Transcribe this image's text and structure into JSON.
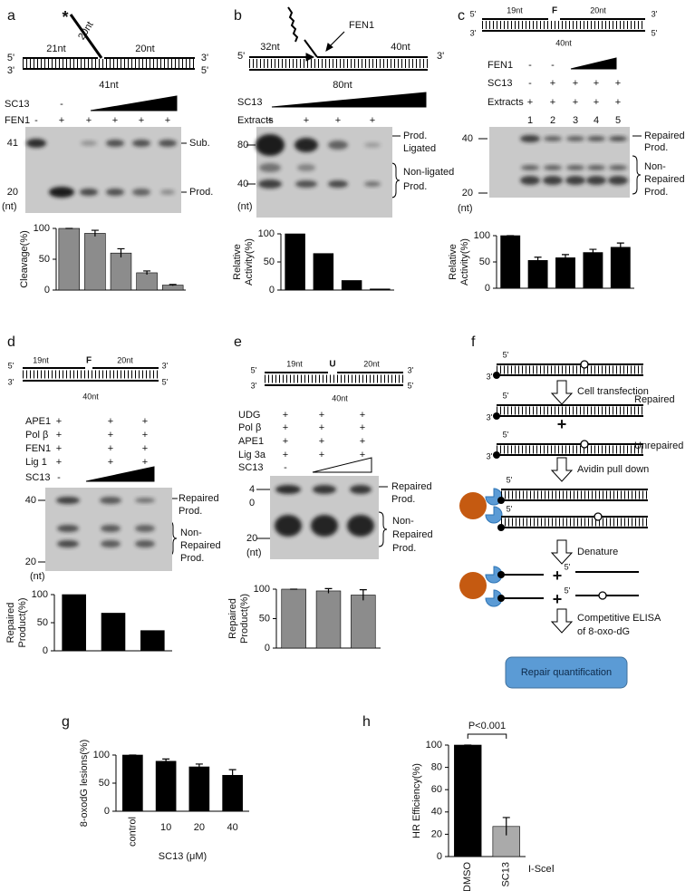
{
  "panels": {
    "a": {
      "letter": "a",
      "star": "*",
      "flap": "20nt",
      "ends": [
        "5'",
        "3'",
        "3'",
        "5'"
      ],
      "segments": [
        "21nt",
        "20nt"
      ],
      "length": "41nt",
      "rows": [
        {
          "label": "SC13",
          "marks": [
            "-"
          ]
        },
        {
          "label": "FEN1",
          "marks": [
            "-",
            "+",
            "+",
            "+",
            "+",
            "+"
          ]
        }
      ],
      "sizes": [
        "41",
        "20",
        "(nt)"
      ],
      "bands": [
        "Sub.",
        "Prod."
      ]
    },
    "b": {
      "letter": "b",
      "enzyme": "FEN1",
      "ends": [
        "5'",
        "3'"
      ],
      "segments": [
        "32nt",
        "40nt"
      ],
      "length": "80nt",
      "rows": [
        {
          "label": "SC13"
        },
        {
          "label": "Extracts",
          "marks": [
            "+",
            "+",
            "+",
            "+"
          ]
        }
      ],
      "sizes": [
        "80",
        "40",
        "(nt)"
      ],
      "bands": [
        "Prod.",
        "Ligated",
        "Non-ligated",
        "Prod."
      ]
    },
    "c": {
      "letter": "c",
      "ends": [
        "5'",
        "3'",
        "3'",
        "5'"
      ],
      "segments": [
        "19nt",
        "F",
        "20nt"
      ],
      "length": "40nt",
      "rows": [
        {
          "label": "FEN1",
          "marks": [
            "-",
            "-"
          ]
        },
        {
          "label": "SC13",
          "marks": [
            "-",
            "+",
            "+",
            "+",
            "+"
          ]
        },
        {
          "label": "Extracts",
          "marks": [
            "+",
            "+",
            "+",
            "+",
            "+"
          ]
        }
      ],
      "lanes": [
        "1",
        "2",
        "3",
        "4",
        "5"
      ],
      "sizes": [
        "40",
        "20",
        "(nt)"
      ],
      "bands": [
        "Repaired",
        "Prod.",
        "Non-",
        "Repaired",
        "Prod."
      ]
    },
    "d": {
      "letter": "d",
      "ends": [
        "5'",
        "3'",
        "3'",
        "5'"
      ],
      "segments": [
        "19nt",
        "F",
        "20nt"
      ],
      "length": "40nt",
      "rows": [
        {
          "label": "APE1",
          "marks": [
            "+",
            "+",
            "+"
          ]
        },
        {
          "label": "Pol β",
          "marks": [
            "+",
            "+",
            "+"
          ]
        },
        {
          "label": "FEN1",
          "marks": [
            "+",
            "+",
            "+"
          ]
        },
        {
          "label": "Lig 1",
          "marks": [
            "+",
            "+",
            "+"
          ]
        },
        {
          "label": "SC13",
          "marks": [
            "-"
          ]
        }
      ],
      "sizes": [
        "40",
        "20",
        "(nt)"
      ],
      "bands": [
        "Repaired",
        "Prod.",
        "Non-",
        "Repaired",
        "Prod."
      ]
    },
    "e": {
      "letter": "e",
      "ends": [
        "5'",
        "3'",
        "3'",
        "5'"
      ],
      "segments": [
        "19nt",
        "U",
        "20nt"
      ],
      "length": "40nt",
      "rows": [
        {
          "label": "UDG",
          "marks": [
            "+",
            "+",
            "+"
          ]
        },
        {
          "label": "Pol β",
          "marks": [
            "+",
            "+",
            "+"
          ]
        },
        {
          "label": "APE1",
          "marks": [
            "+",
            "+",
            "+"
          ]
        },
        {
          "label": "Lig 3a",
          "marks": [
            "+",
            "+",
            "+"
          ]
        },
        {
          "label": "SC13",
          "marks": [
            "-"
          ]
        }
      ],
      "sizes": [
        "4",
        "0",
        "20",
        "(nt)"
      ],
      "bands": [
        "Repaired",
        "Prod.",
        "Non-",
        "Repaired",
        "Prod."
      ]
    },
    "f": {
      "letter": "f",
      "strand_labels": [
        "5'",
        "3'",
        "5'",
        "3'",
        "5'",
        "3'",
        "5'",
        "5'",
        "5'",
        "5'"
      ],
      "steps": [
        "Cell transfection",
        "Avidin pull down",
        "Denature",
        "Competitive ELISA",
        "of 8-oxo-dG"
      ],
      "repaired": "Repaired",
      "unrepaired": "Unrepaired",
      "plus": [
        "+",
        "+",
        "+"
      ],
      "result": "Repair quantification"
    },
    "g": {
      "letter": "g"
    },
    "h": {
      "letter": "h"
    }
  },
  "chart_data": [
    {
      "type": "bar",
      "ylabel": [
        "Cleavage(%)"
      ],
      "values": [
        100,
        92,
        60,
        28,
        8
      ],
      "errors": [
        0,
        5,
        7,
        3,
        1
      ],
      "color": "#8c8c8c",
      "ylim": [
        0,
        100
      ],
      "yticks": [
        0,
        50,
        100
      ]
    },
    {
      "type": "bar",
      "ylabel": [
        "Relative",
        "Activity(%)"
      ],
      "values": [
        100,
        65,
        17,
        2
      ],
      "color": "#000000",
      "ylim": [
        0,
        100
      ],
      "yticks": [
        0,
        50,
        100
      ]
    },
    {
      "type": "bar",
      "ylabel": [
        "Relative",
        "Activity(%)"
      ],
      "values": [
        100,
        53,
        58,
        68,
        78
      ],
      "errors": [
        0,
        6,
        6,
        6,
        8
      ],
      "color": "#000000",
      "ylim": [
        0,
        100
      ],
      "yticks": [
        0,
        50,
        100
      ]
    },
    {
      "type": "bar",
      "ylabel": [
        "Repaired",
        "Product(%)"
      ],
      "values": [
        100,
        67,
        36
      ],
      "color": "#000000",
      "ylim": [
        0,
        100
      ],
      "yticks": [
        0,
        50,
        100
      ]
    },
    {
      "type": "bar",
      "ylabel": [
        "Repaired",
        "Product(%)"
      ],
      "values": [
        100,
        97,
        90
      ],
      "errors": [
        0,
        4,
        9
      ],
      "color": "#8c8c8c",
      "ylim": [
        0,
        100
      ],
      "yticks": [
        0,
        50,
        100
      ]
    },
    {
      "type": "bar",
      "ylabel": [
        "8-oxodG lesions(%)"
      ],
      "xlabel": "SC13 (μM)",
      "categories": [
        "control",
        "10",
        "20",
        "40"
      ],
      "values": [
        100,
        89,
        79,
        64
      ],
      "errors": [
        0,
        4,
        5,
        10
      ],
      "color": "#000000",
      "ylim": [
        0,
        100
      ],
      "yticks": [
        0,
        50,
        100
      ]
    },
    {
      "type": "bar",
      "ylabel": [
        "HR Efficiency(%)"
      ],
      "categories": [
        "DMSO",
        "SC13"
      ],
      "values": [
        100,
        27
      ],
      "errors": [
        0,
        8
      ],
      "colors": [
        "#000000",
        "#aaaaaa"
      ],
      "ylim": [
        0,
        100
      ],
      "yticks": [
        0,
        20,
        40,
        60,
        80,
        100
      ],
      "annotations": [
        "P<0.001",
        "I-SceⅠ"
      ]
    }
  ]
}
